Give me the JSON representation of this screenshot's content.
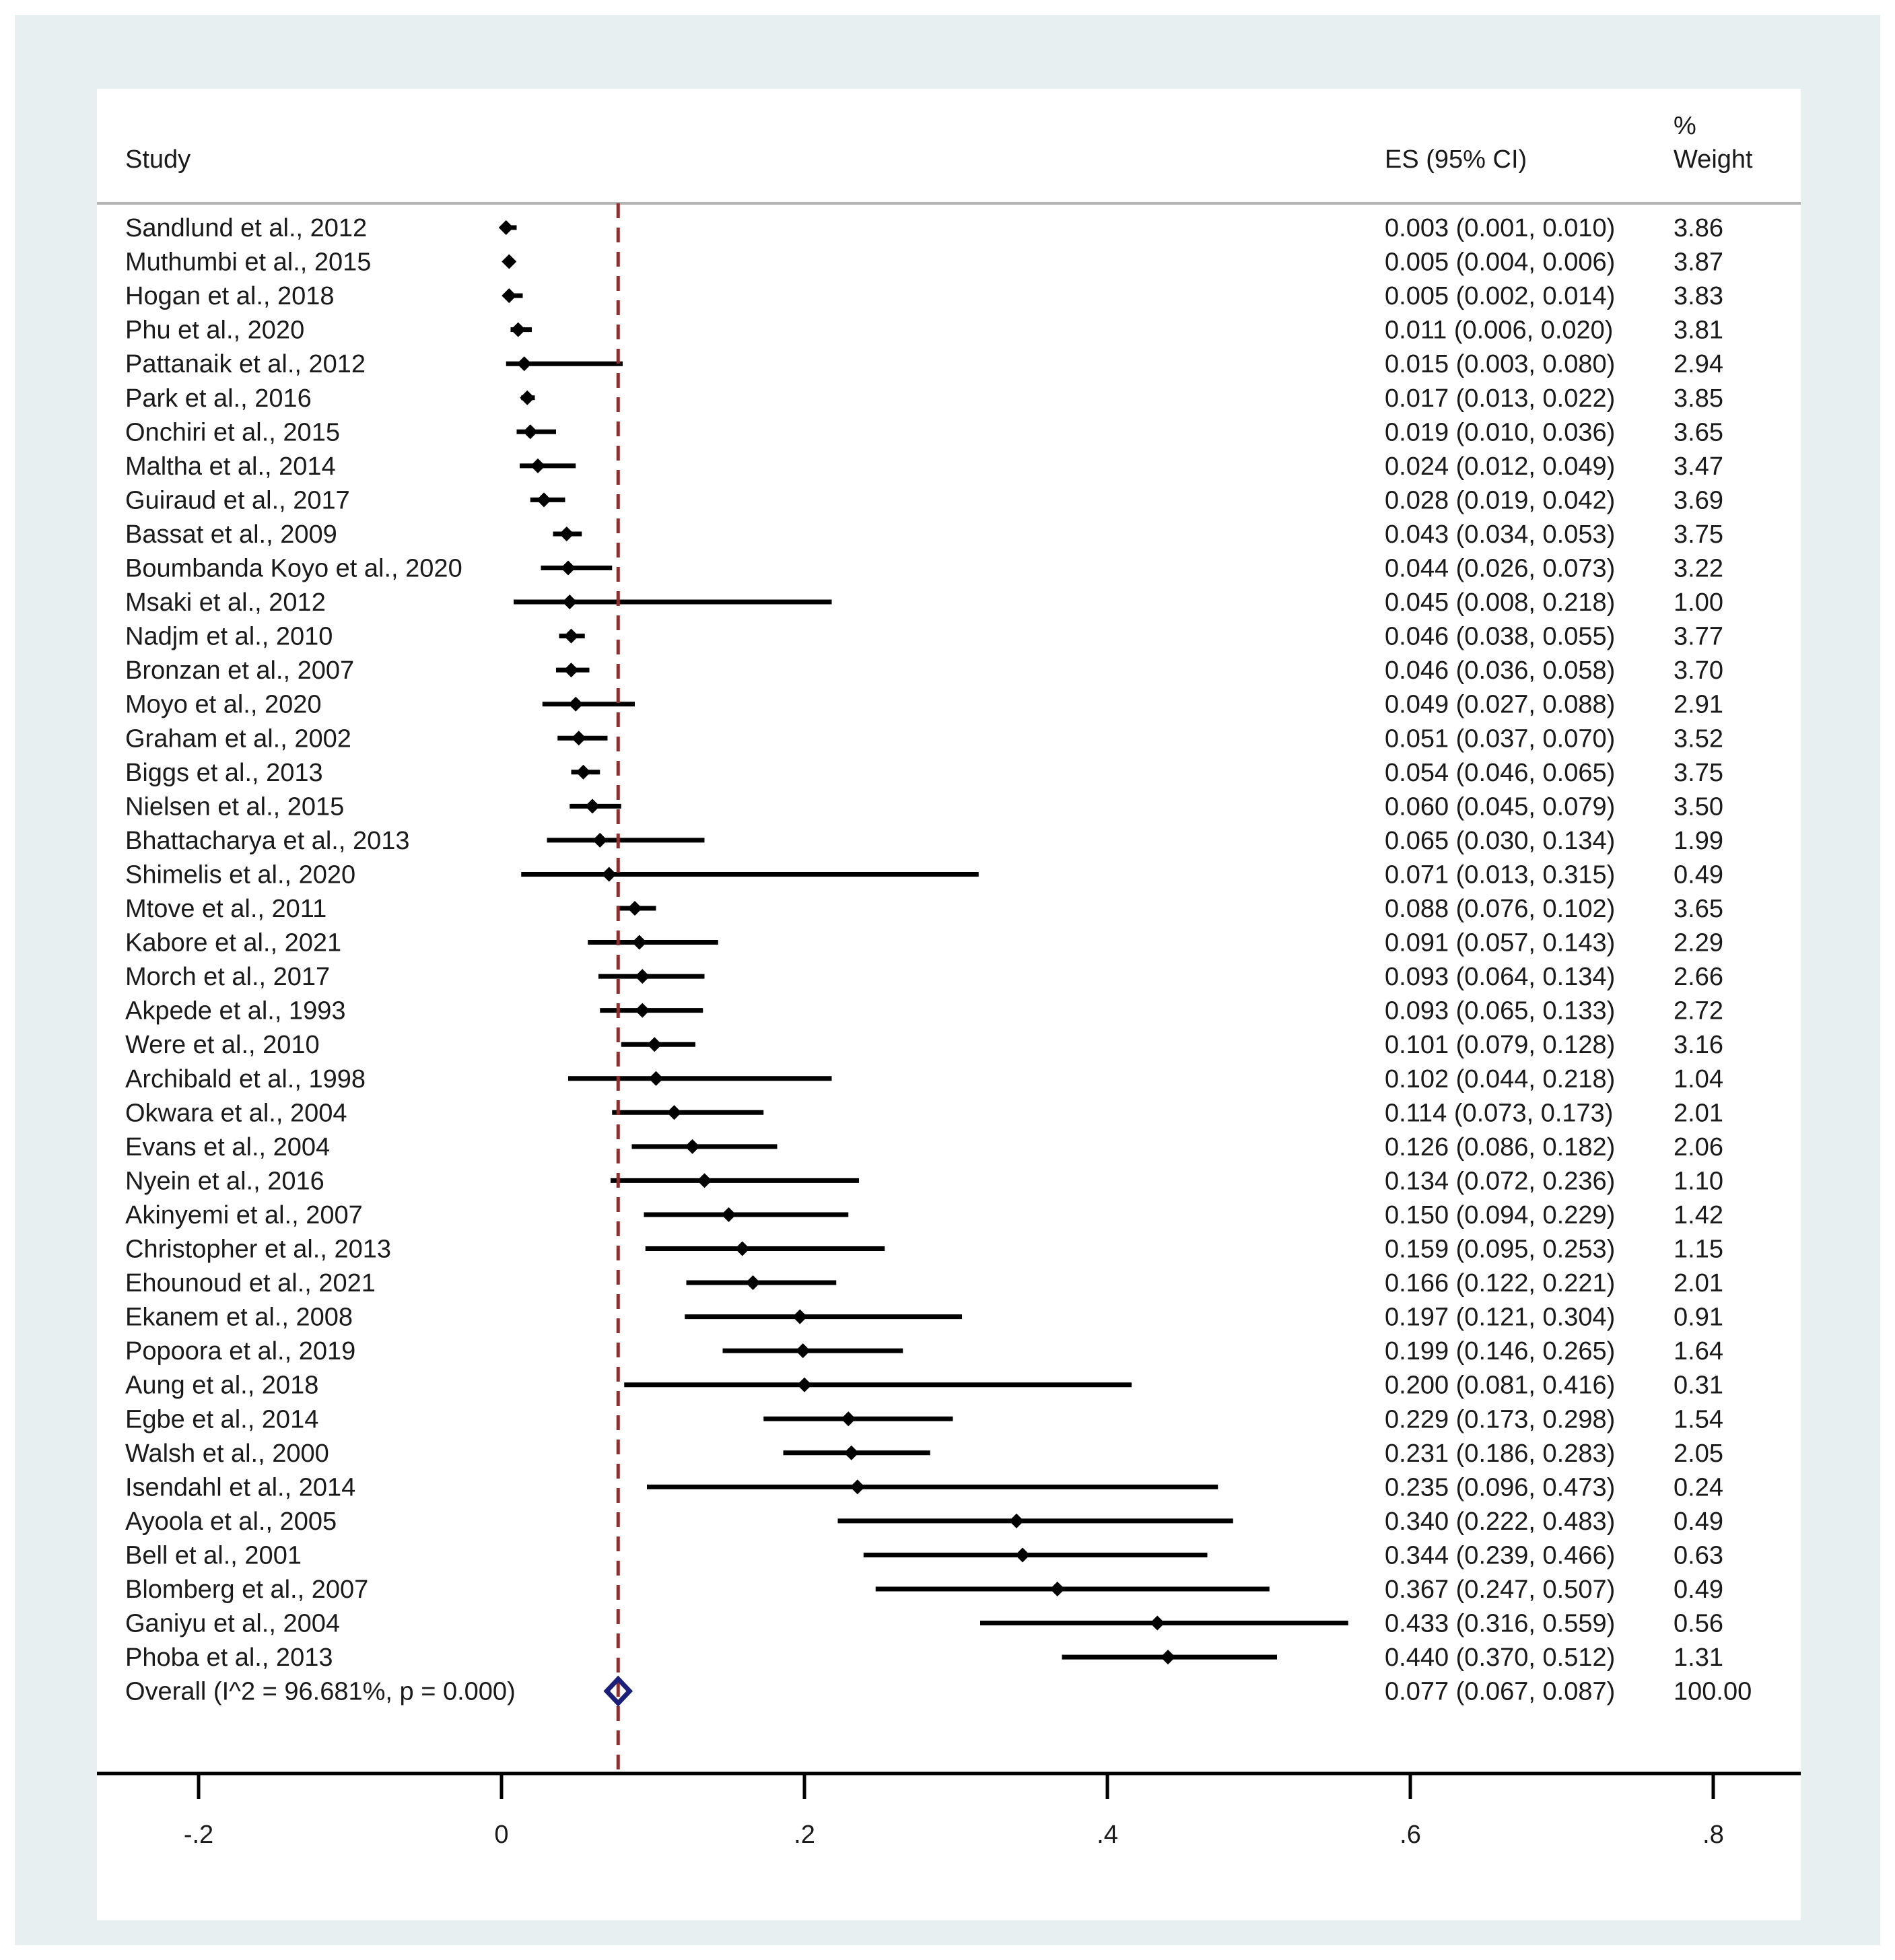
{
  "chart_data": {
    "type": "forest",
    "headers": {
      "study": "Study",
      "es": "ES (95% CI)",
      "weight_line1": "%",
      "weight_line2": "Weight"
    },
    "studies": [
      {
        "label": "Sandlund et al., 2012",
        "es": 0.003,
        "lo": 0.001,
        "hi": 0.01,
        "es_text": "0.003 (0.001, 0.010)",
        "weight": "3.86"
      },
      {
        "label": "Muthumbi et al., 2015",
        "es": 0.005,
        "lo": 0.004,
        "hi": 0.006,
        "es_text": "0.005 (0.004, 0.006)",
        "weight": "3.87"
      },
      {
        "label": "Hogan et al., 2018",
        "es": 0.005,
        "lo": 0.002,
        "hi": 0.014,
        "es_text": "0.005 (0.002, 0.014)",
        "weight": "3.83"
      },
      {
        "label": "Phu et al., 2020",
        "es": 0.011,
        "lo": 0.006,
        "hi": 0.02,
        "es_text": "0.011 (0.006, 0.020)",
        "weight": "3.81"
      },
      {
        "label": "Pattanaik et al., 2012",
        "es": 0.015,
        "lo": 0.003,
        "hi": 0.08,
        "es_text": "0.015 (0.003, 0.080)",
        "weight": "2.94"
      },
      {
        "label": "Park et al., 2016",
        "es": 0.017,
        "lo": 0.013,
        "hi": 0.022,
        "es_text": "0.017 (0.013, 0.022)",
        "weight": "3.85"
      },
      {
        "label": "Onchiri et al., 2015",
        "es": 0.019,
        "lo": 0.01,
        "hi": 0.036,
        "es_text": "0.019 (0.010, 0.036)",
        "weight": "3.65"
      },
      {
        "label": "Maltha et al., 2014",
        "es": 0.024,
        "lo": 0.012,
        "hi": 0.049,
        "es_text": "0.024 (0.012, 0.049)",
        "weight": "3.47"
      },
      {
        "label": "Guiraud et al., 2017",
        "es": 0.028,
        "lo": 0.019,
        "hi": 0.042,
        "es_text": "0.028 (0.019, 0.042)",
        "weight": "3.69"
      },
      {
        "label": "Bassat et al., 2009",
        "es": 0.043,
        "lo": 0.034,
        "hi": 0.053,
        "es_text": "0.043 (0.034, 0.053)",
        "weight": "3.75"
      },
      {
        "label": "Boumbanda Koyo et al., 2020",
        "es": 0.044,
        "lo": 0.026,
        "hi": 0.073,
        "es_text": "0.044 (0.026, 0.073)",
        "weight": "3.22"
      },
      {
        "label": "Msaki et al., 2012",
        "es": 0.045,
        "lo": 0.008,
        "hi": 0.218,
        "es_text": "0.045 (0.008, 0.218)",
        "weight": "1.00"
      },
      {
        "label": "Nadjm et al., 2010",
        "es": 0.046,
        "lo": 0.038,
        "hi": 0.055,
        "es_text": "0.046 (0.038, 0.055)",
        "weight": "3.77"
      },
      {
        "label": "Bronzan et al., 2007",
        "es": 0.046,
        "lo": 0.036,
        "hi": 0.058,
        "es_text": "0.046 (0.036, 0.058)",
        "weight": "3.70"
      },
      {
        "label": "Moyo et al., 2020",
        "es": 0.049,
        "lo": 0.027,
        "hi": 0.088,
        "es_text": "0.049 (0.027, 0.088)",
        "weight": "2.91"
      },
      {
        "label": "Graham et al., 2002",
        "es": 0.051,
        "lo": 0.037,
        "hi": 0.07,
        "es_text": "0.051 (0.037, 0.070)",
        "weight": "3.52"
      },
      {
        "label": "Biggs et al., 2013",
        "es": 0.054,
        "lo": 0.046,
        "hi": 0.065,
        "es_text": "0.054 (0.046, 0.065)",
        "weight": "3.75"
      },
      {
        "label": "Nielsen et al., 2015",
        "es": 0.06,
        "lo": 0.045,
        "hi": 0.079,
        "es_text": "0.060 (0.045, 0.079)",
        "weight": "3.50"
      },
      {
        "label": "Bhattacharya et al., 2013",
        "es": 0.065,
        "lo": 0.03,
        "hi": 0.134,
        "es_text": "0.065 (0.030, 0.134)",
        "weight": "1.99"
      },
      {
        "label": "Shimelis et al., 2020",
        "es": 0.071,
        "lo": 0.013,
        "hi": 0.315,
        "es_text": "0.071 (0.013, 0.315)",
        "weight": "0.49"
      },
      {
        "label": "Mtove et al., 2011",
        "es": 0.088,
        "lo": 0.076,
        "hi": 0.102,
        "es_text": "0.088 (0.076, 0.102)",
        "weight": "3.65"
      },
      {
        "label": "Kabore et al., 2021",
        "es": 0.091,
        "lo": 0.057,
        "hi": 0.143,
        "es_text": "0.091 (0.057, 0.143)",
        "weight": "2.29"
      },
      {
        "label": "Morch et al., 2017",
        "es": 0.093,
        "lo": 0.064,
        "hi": 0.134,
        "es_text": "0.093 (0.064, 0.134)",
        "weight": "2.66"
      },
      {
        "label": "Akpede et al., 1993",
        "es": 0.093,
        "lo": 0.065,
        "hi": 0.133,
        "es_text": "0.093 (0.065, 0.133)",
        "weight": "2.72"
      },
      {
        "label": "Were et al., 2010",
        "es": 0.101,
        "lo": 0.079,
        "hi": 0.128,
        "es_text": "0.101 (0.079, 0.128)",
        "weight": "3.16"
      },
      {
        "label": "Archibald et al., 1998",
        "es": 0.102,
        "lo": 0.044,
        "hi": 0.218,
        "es_text": "0.102 (0.044, 0.218)",
        "weight": "1.04"
      },
      {
        "label": "Okwara et al., 2004",
        "es": 0.114,
        "lo": 0.073,
        "hi": 0.173,
        "es_text": "0.114 (0.073, 0.173)",
        "weight": "2.01"
      },
      {
        "label": "Evans et al., 2004",
        "es": 0.126,
        "lo": 0.086,
        "hi": 0.182,
        "es_text": "0.126 (0.086, 0.182)",
        "weight": "2.06"
      },
      {
        "label": "Nyein et al., 2016",
        "es": 0.134,
        "lo": 0.072,
        "hi": 0.236,
        "es_text": "0.134 (0.072, 0.236)",
        "weight": "1.10"
      },
      {
        "label": "Akinyemi et al., 2007",
        "es": 0.15,
        "lo": 0.094,
        "hi": 0.229,
        "es_text": "0.150 (0.094, 0.229)",
        "weight": "1.42"
      },
      {
        "label": "Christopher et al., 2013",
        "es": 0.159,
        "lo": 0.095,
        "hi": 0.253,
        "es_text": "0.159 (0.095, 0.253)",
        "weight": "1.15"
      },
      {
        "label": "Ehounoud et al., 2021",
        "es": 0.166,
        "lo": 0.122,
        "hi": 0.221,
        "es_text": "0.166 (0.122, 0.221)",
        "weight": "2.01"
      },
      {
        "label": "Ekanem et al., 2008",
        "es": 0.197,
        "lo": 0.121,
        "hi": 0.304,
        "es_text": "0.197 (0.121, 0.304)",
        "weight": "0.91"
      },
      {
        "label": "Popoora et al., 2019",
        "es": 0.199,
        "lo": 0.146,
        "hi": 0.265,
        "es_text": "0.199 (0.146, 0.265)",
        "weight": "1.64"
      },
      {
        "label": "Aung et al., 2018",
        "es": 0.2,
        "lo": 0.081,
        "hi": 0.416,
        "es_text": "0.200 (0.081, 0.416)",
        "weight": "0.31"
      },
      {
        "label": "Egbe et al., 2014",
        "es": 0.229,
        "lo": 0.173,
        "hi": 0.298,
        "es_text": "0.229 (0.173, 0.298)",
        "weight": "1.54"
      },
      {
        "label": "Walsh et al., 2000",
        "es": 0.231,
        "lo": 0.186,
        "hi": 0.283,
        "es_text": "0.231 (0.186, 0.283)",
        "weight": "2.05"
      },
      {
        "label": "Isendahl et al., 2014",
        "es": 0.235,
        "lo": 0.096,
        "hi": 0.473,
        "es_text": "0.235 (0.096, 0.473)",
        "weight": "0.24"
      },
      {
        "label": "Ayoola et al., 2005",
        "es": 0.34,
        "lo": 0.222,
        "hi": 0.483,
        "es_text": "0.340 (0.222, 0.483)",
        "weight": "0.49"
      },
      {
        "label": "Bell et al., 2001",
        "es": 0.344,
        "lo": 0.239,
        "hi": 0.466,
        "es_text": "0.344 (0.239, 0.466)",
        "weight": "0.63"
      },
      {
        "label": "Blomberg et al., 2007",
        "es": 0.367,
        "lo": 0.247,
        "hi": 0.507,
        "es_text": "0.367 (0.247, 0.507)",
        "weight": "0.49"
      },
      {
        "label": "Ganiyu et al., 2004",
        "es": 0.433,
        "lo": 0.316,
        "hi": 0.559,
        "es_text": "0.433 (0.316, 0.559)",
        "weight": "0.56"
      },
      {
        "label": "Phoba et al., 2013",
        "es": 0.44,
        "lo": 0.37,
        "hi": 0.512,
        "es_text": "0.440 (0.370, 0.512)",
        "weight": "1.31"
      }
    ],
    "overall": {
      "label": "Overall  (I^2 = 96.681%, p = 0.000)",
      "es": 0.077,
      "lo": 0.067,
      "hi": 0.087,
      "es_text": "0.077 (0.067, 0.087)",
      "weight": "100.00"
    },
    "xaxis": {
      "ticks": [
        -0.2,
        0,
        0.2,
        0.4,
        0.6,
        0.8
      ],
      "tick_labels": [
        "-.2",
        "0",
        ".2",
        ".4",
        ".6",
        ".8"
      ]
    },
    "reference_line": 0.077,
    "colors": {
      "background": "#e8eff1",
      "panel": "#ffffff",
      "marker": "#000000",
      "ci_line": "#000000",
      "reference_line": "#8b2f2f",
      "overall_diamond": "#1c1f7a"
    }
  }
}
